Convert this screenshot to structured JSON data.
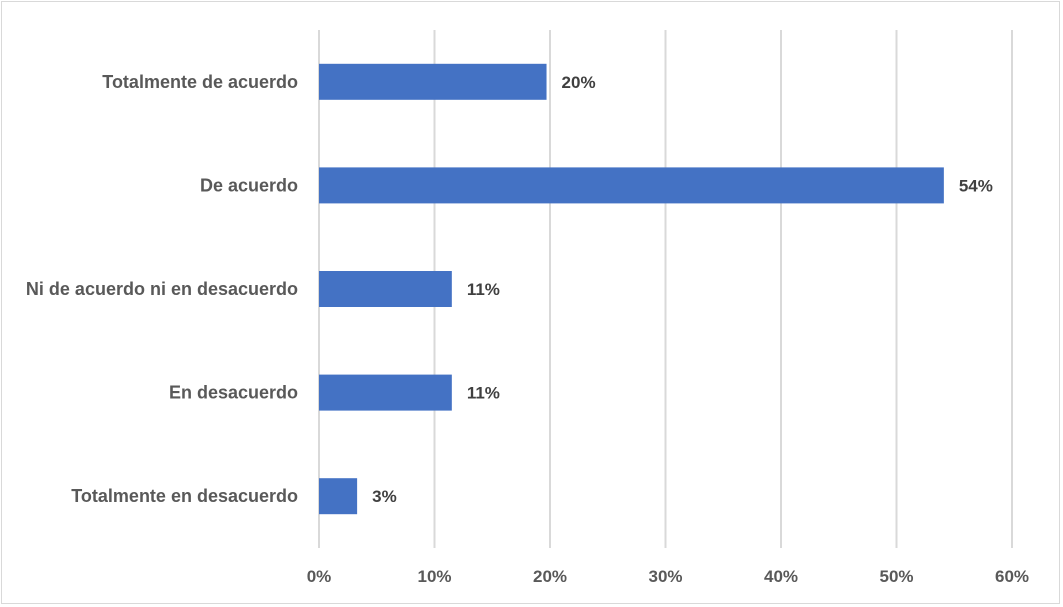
{
  "chart_data": {
    "type": "bar",
    "orientation": "horizontal",
    "categories": [
      "Totalmente de acuerdo",
      "De acuerdo",
      "Ni de acuerdo ni en desacuerdo",
      "En desacuerdo",
      "Totalmente en desacuerdo"
    ],
    "values": [
      0.197,
      0.541,
      0.115,
      0.115,
      0.033
    ],
    "data_labels": [
      "20%",
      "54%",
      "11%",
      "11%",
      "3%"
    ],
    "x_ticks": [
      "0%",
      "10%",
      "20%",
      "30%",
      "40%",
      "50%",
      "60%"
    ],
    "xlim": [
      0,
      0.6
    ],
    "title": "",
    "xlabel": "",
    "ylabel": "",
    "grid": "vertical",
    "legend": "none",
    "bar_color": "#4472c4",
    "grid_color": "#d9d9d9"
  }
}
